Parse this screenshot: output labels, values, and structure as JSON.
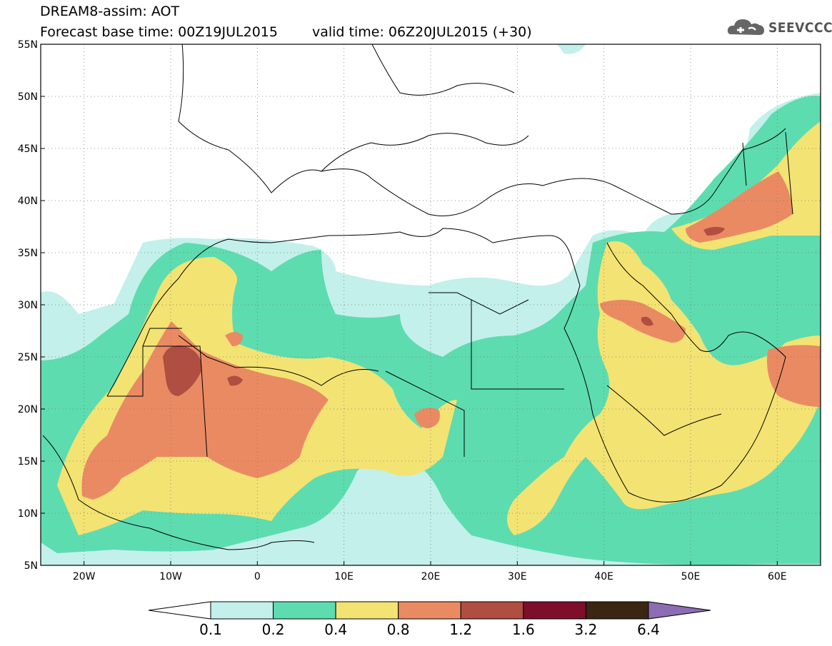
{
  "title": {
    "line1": "DREAM8-assim: AOT",
    "base_time": "Forecast base time: 00Z19JUL2015",
    "valid_time": "valid time: 06Z20JUL2015 (+30)"
  },
  "logo": {
    "text": "SEEVCCC",
    "icon": "cloud-logo-icon",
    "color": "#555555"
  },
  "axes": {
    "lon_range": [
      -25,
      65
    ],
    "lat_range": [
      5,
      55
    ],
    "lon_ticks": [
      {
        "value": -20,
        "label": "20W"
      },
      {
        "value": -10,
        "label": "10W"
      },
      {
        "value": 0,
        "label": "0"
      },
      {
        "value": 10,
        "label": "10E"
      },
      {
        "value": 20,
        "label": "20E"
      },
      {
        "value": 30,
        "label": "30E"
      },
      {
        "value": 40,
        "label": "40E"
      },
      {
        "value": 50,
        "label": "50E"
      },
      {
        "value": 60,
        "label": "60E"
      }
    ],
    "lat_ticks": [
      {
        "value": 5,
        "label": "5N"
      },
      {
        "value": 10,
        "label": "10N"
      },
      {
        "value": 15,
        "label": "15N"
      },
      {
        "value": 20,
        "label": "20N"
      },
      {
        "value": 25,
        "label": "25N"
      },
      {
        "value": 30,
        "label": "30N"
      },
      {
        "value": 35,
        "label": "35N"
      },
      {
        "value": 40,
        "label": "40N"
      },
      {
        "value": 45,
        "label": "45N"
      },
      {
        "value": 50,
        "label": "50N"
      },
      {
        "value": 55,
        "label": "55N"
      }
    ],
    "grid": true
  },
  "colorbar": {
    "boundaries": [
      "0.1",
      "0.2",
      "0.4",
      "0.8",
      "1.2",
      "1.6",
      "3.2",
      "6.4"
    ],
    "colors": [
      "#c3f0ea",
      "#5ddcb0",
      "#f3e373",
      "#ea8a63",
      "#b04e41",
      "#7d0f2b",
      "#3b2613"
    ],
    "under_color": "#ffffff",
    "over_color": "#8c6cb2"
  },
  "map_colors": {
    "land_lines": "#000000",
    "c1": "#c3f0ea",
    "c2": "#5ddcb0",
    "c3": "#f3e373",
    "c4": "#ea8a63",
    "c5": "#b04e41"
  }
}
